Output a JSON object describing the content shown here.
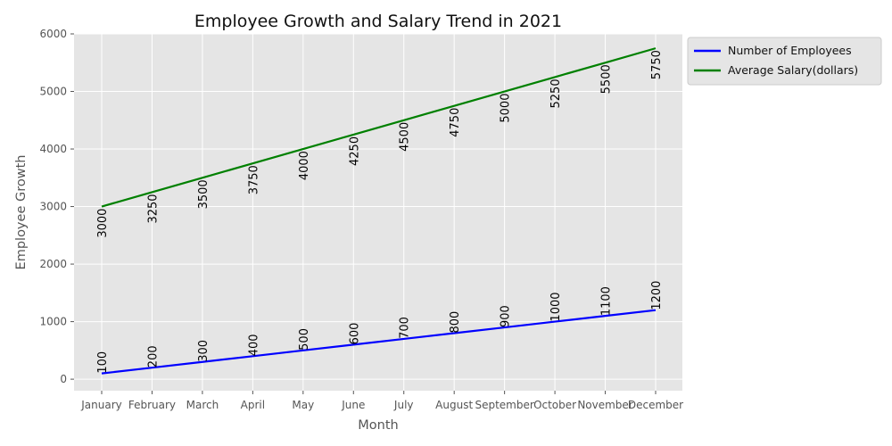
{
  "chart_data": {
    "type": "line",
    "title": "Employee Growth and Salary Trend in 2021",
    "xlabel": "Month",
    "ylabel": "Employee Growth",
    "categories": [
      "January",
      "February",
      "March",
      "April",
      "May",
      "June",
      "July",
      "August",
      "September",
      "October",
      "November",
      "December"
    ],
    "ylim": [
      -200,
      6000
    ],
    "yticks": [
      0,
      1000,
      2000,
      3000,
      4000,
      5000,
      6000
    ],
    "grid": true,
    "legend_position": "upper-right-outside",
    "series": [
      {
        "name": "Number of Employees",
        "color": "#0000ff",
        "values": [
          100,
          200,
          300,
          400,
          500,
          600,
          700,
          800,
          900,
          1000,
          1100,
          1200
        ],
        "label_side": "above"
      },
      {
        "name": "Average Salary(dollars)",
        "color": "#008000",
        "values": [
          3000,
          3250,
          3500,
          3750,
          4000,
          4250,
          4500,
          4750,
          5000,
          5250,
          5500,
          5750
        ],
        "label_side": "below"
      }
    ]
  }
}
